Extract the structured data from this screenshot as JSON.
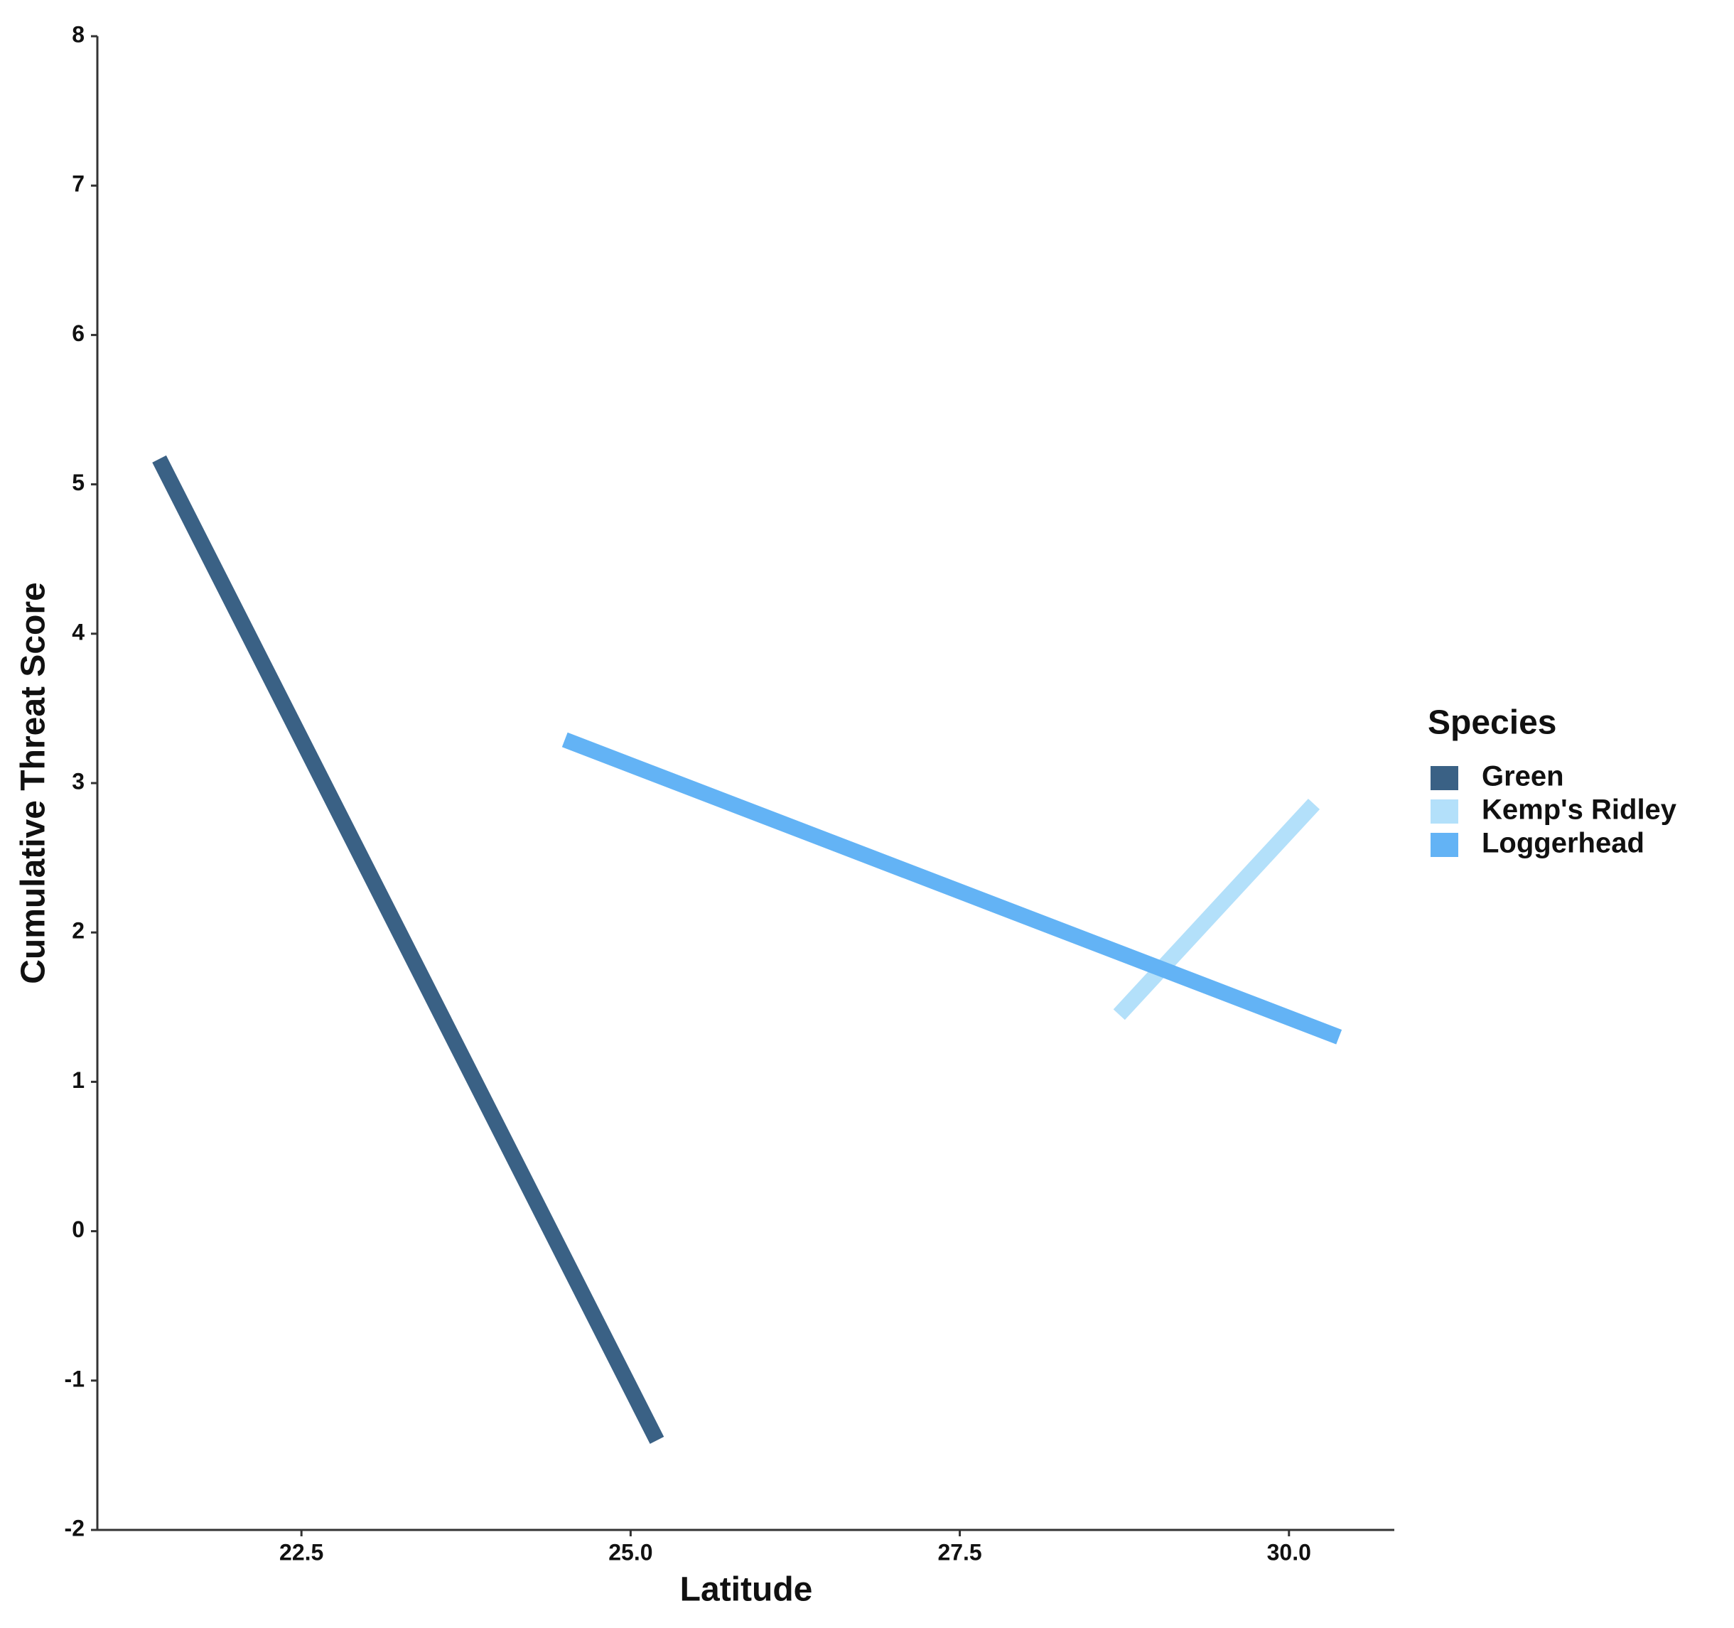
{
  "chart_data": {
    "type": "line",
    "x_label": "Latitude",
    "y_label": "Cumulative Threat Score",
    "legend_title": "Species",
    "legend": "right",
    "xlim": [
      20.95,
      30.8
    ],
    "ylim": [
      -2,
      8
    ],
    "xticks": [
      22.5,
      {
        "value": 25,
        "label": "25.0"
      },
      27.5,
      {
        "value": 30,
        "label": "30.0"
      }
    ],
    "yticks": [
      -2,
      -1,
      0,
      1,
      2,
      3,
      4,
      5,
      6,
      7,
      8
    ],
    "grid": false,
    "series": [
      {
        "name": "Green",
        "color": "#3a6185",
        "x": [
          21.42,
          25.2
        ],
        "values": [
          5.17,
          -1.4
        ]
      },
      {
        "name": "Kemp's Ridley",
        "color": "#b3e0fa",
        "x": [
          28.71,
          30.19
        ],
        "values": [
          1.45,
          2.86
        ]
      },
      {
        "name": "Loggerhead",
        "color": "#63b3f5",
        "x": [
          24.5,
          30.38
        ],
        "values": [
          3.29,
          1.3
        ]
      }
    ]
  }
}
